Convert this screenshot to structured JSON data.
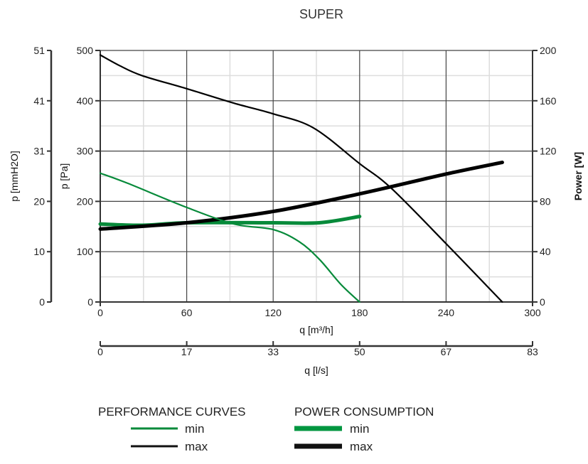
{
  "chart_data": {
    "type": "line",
    "title": "SUPER",
    "xlabel": "q [m³/h]",
    "x2label": "q [l/s]",
    "ylabel_left_outer": "p [mmH2O]",
    "ylabel_left": "p [Pa]",
    "ylabel_right": "Power [W]",
    "xlim": [
      0,
      300
    ],
    "ylim": [
      0,
      500
    ],
    "y2lim": [
      0,
      200
    ],
    "grid": true,
    "x_ticks": [
      "0",
      "60",
      "120",
      "180",
      "240",
      "300"
    ],
    "x2_ticks": [
      "0",
      "17",
      "33",
      "50",
      "67",
      "83"
    ],
    "y_ticks": [
      "0",
      "100",
      "200",
      "300",
      "400",
      "500"
    ],
    "y_outer_ticks": [
      "0",
      "10",
      "20",
      "31",
      "41",
      "51"
    ],
    "y_right_ticks": [
      "0",
      "40",
      "80",
      "120",
      "160",
      "200"
    ],
    "colors": {
      "min": "#078a3a",
      "max": "#000000",
      "grid_major": "#444444",
      "grid_minor": "#dddddd"
    },
    "series": [
      {
        "group": "PERFORMANCE CURVES",
        "name": "max",
        "axis": "left",
        "color": "#000000",
        "x": [
          0,
          14,
          29,
          60,
          93,
          120,
          148,
          180,
          202,
          241,
          279
        ],
        "y": [
          491,
          469,
          450,
          424,
          395,
          374,
          346,
          275,
          226,
          113,
          0
        ]
      },
      {
        "group": "PERFORMANCE CURVES",
        "name": "min",
        "axis": "left",
        "color": "#078a3a",
        "x": [
          0,
          19,
          60,
          93,
          120,
          138,
          152,
          167,
          180
        ],
        "y": [
          256,
          236,
          188,
          155,
          144,
          120,
          85,
          35,
          0
        ]
      },
      {
        "group": "POWER CONSUMPTION",
        "name": "max",
        "axis": "right",
        "color": "#000000",
        "x": [
          0,
          60,
          120,
          180,
          241,
          279
        ],
        "y": [
          58,
          63,
          72,
          86,
          102,
          111
        ]
      },
      {
        "group": "POWER CONSUMPTION",
        "name": "min",
        "axis": "right",
        "color": "#078a3a",
        "x": [
          0,
          29,
          60,
          120,
          152,
          180
        ],
        "y": [
          62,
          61,
          63,
          63,
          63,
          68
        ]
      }
    ],
    "legend": {
      "placement": "bottom",
      "performance_title": "PERFORMANCE CURVES",
      "power_title": "POWER CONSUMPTION",
      "min": "min",
      "max": "max"
    }
  }
}
